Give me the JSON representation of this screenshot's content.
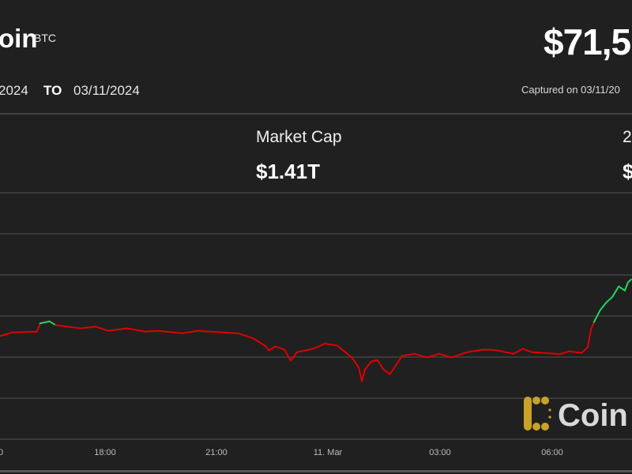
{
  "header": {
    "title": "oin",
    "symbol": "BTC",
    "price": "$71,5",
    "date_from": "2024",
    "to_label": "TO",
    "date_to": "03/11/2024",
    "captured": "Captured on 03/11/20"
  },
  "stats": [
    {
      "label": "Market Cap",
      "value": "$1.41T"
    },
    {
      "label": "2",
      "value": "$"
    }
  ],
  "logo": {
    "text": "Coin",
    "mark_color": "#c9a227"
  },
  "colors": {
    "background": "#202020",
    "up": "#1ed760",
    "down": "#e00000",
    "grid": "#3a3a3a"
  },
  "chart_data": {
    "type": "line",
    "title": "",
    "xlabel": "",
    "ylabel": "",
    "grid": true,
    "x_tick_labels": [
      "0",
      "18:00",
      "21:00",
      "11. Mar",
      "03:00",
      "06:00"
    ],
    "reference_price": 70610,
    "ylim": [
      67800,
      73800
    ],
    "x": [
      "2024-03-10 15:10",
      "2024-03-10 15:30",
      "2024-03-10 16:10",
      "2024-03-10 16:15",
      "2024-03-10 16:30",
      "2024-03-10 16:40",
      "2024-03-10 16:50",
      "2024-03-10 17:20",
      "2024-03-10 17:45",
      "2024-03-10 18:05",
      "2024-03-10 18:35",
      "2024-03-10 19:05",
      "2024-03-10 19:25",
      "2024-03-10 20:05",
      "2024-03-10 20:30",
      "2024-03-10 21:10",
      "2024-03-10 21:35",
      "2024-03-10 22:00",
      "2024-03-10 22:20",
      "2024-03-10 22:25",
      "2024-03-10 22:35",
      "2024-03-10 22:50",
      "2024-03-10 23:00",
      "2024-03-10 23:10",
      "2024-03-10 23:30",
      "2024-03-10 23:40",
      "2024-03-10 23:55",
      "2024-03-11 00:15",
      "2024-03-11 00:25",
      "2024-03-11 00:40",
      "2024-03-11 00:50",
      "2024-03-11 00:55",
      "2024-03-11 01:00",
      "2024-03-11 01:10",
      "2024-03-11 01:20",
      "2024-03-11 01:30",
      "2024-03-11 01:40",
      "2024-03-11 01:50",
      "2024-03-11 02:00",
      "2024-03-11 02:20",
      "2024-03-11 02:40",
      "2024-03-11 03:00",
      "2024-03-11 03:20",
      "2024-03-11 03:45",
      "2024-03-11 04:10",
      "2024-03-11 04:20",
      "2024-03-11 04:35",
      "2024-03-11 05:00",
      "2024-03-11 05:15",
      "2024-03-11 05:30",
      "2024-03-11 05:50",
      "2024-03-11 06:15",
      "2024-03-11 06:30",
      "2024-03-11 06:50",
      "2024-03-11 07:00",
      "2024-03-11 07:05",
      "2024-03-11 07:10",
      "2024-03-11 07:20",
      "2024-03-11 07:30",
      "2024-03-11 07:40",
      "2024-03-11 07:50",
      "2024-03-11 08:00",
      "2024-03-11 08:05",
      "2024-03-11 08:10"
    ],
    "values": [
      70310,
      70400,
      70420,
      70620,
      70670,
      70580,
      70560,
      70500,
      70540,
      70440,
      70500,
      70420,
      70440,
      70380,
      70440,
      70400,
      70380,
      70250,
      70060,
      69960,
      70060,
      69980,
      69710,
      69920,
      69980,
      70020,
      70130,
      70080,
      69960,
      69770,
      69540,
      69210,
      69500,
      69690,
      69730,
      69500,
      69380,
      69600,
      69830,
      69880,
      69790,
      69880,
      69790,
      69920,
      69980,
      69980,
      69960,
      69880,
      70000,
      69920,
      69900,
      69870,
      69940,
      69900,
      70040,
      70460,
      70650,
      70940,
      71130,
      71270,
      71520,
      71420,
      71620,
      71690
    ]
  }
}
